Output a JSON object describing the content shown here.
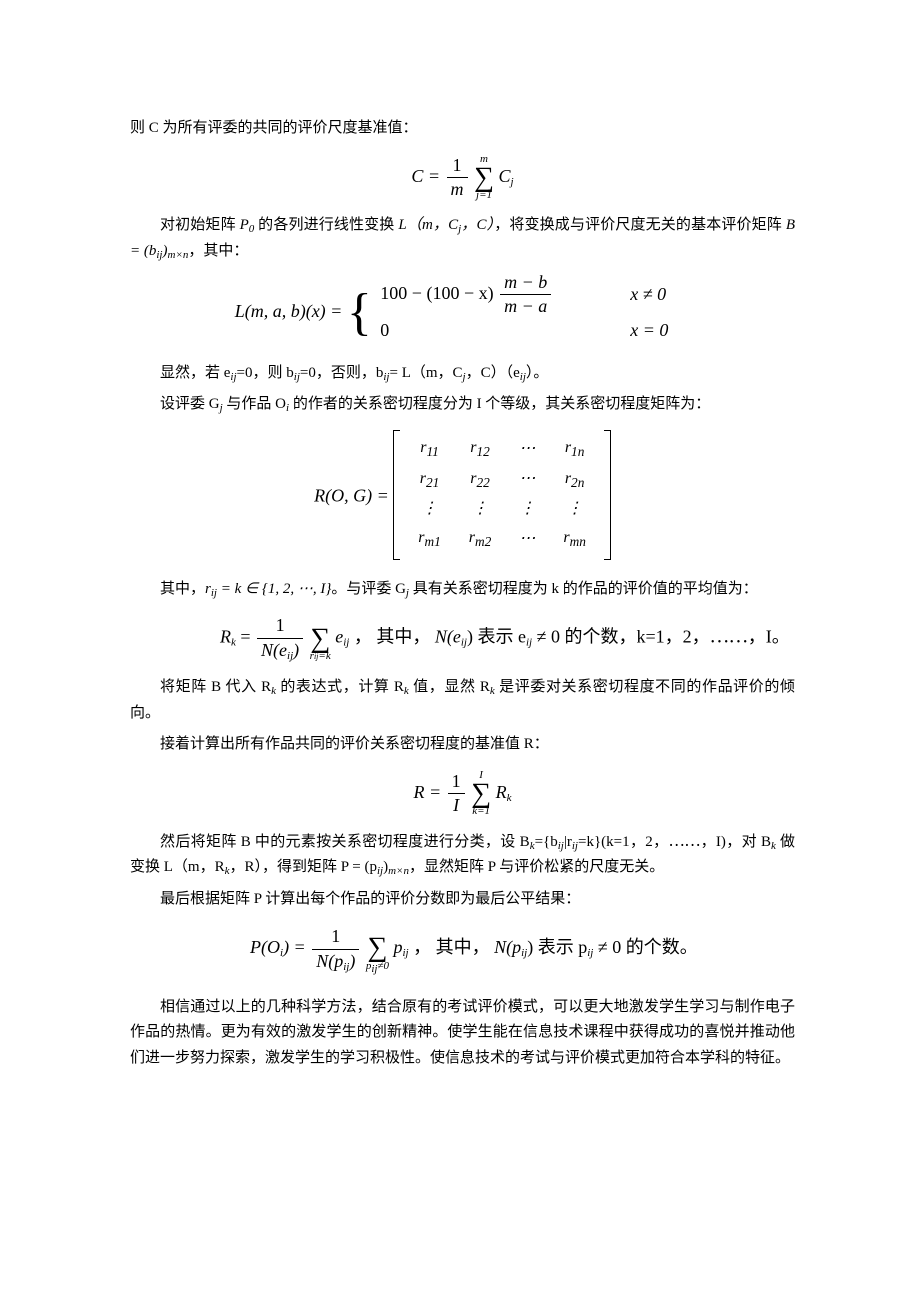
{
  "p1": "则 C 为所有评委的共同的评价尺度基准值：",
  "f1_left": "C =",
  "f1_frac_num": "1",
  "f1_frac_den": "m",
  "f1_sum_upper": "m",
  "f1_sum_lower": "j=1",
  "f1_right": "C",
  "f1_right_sub": "j",
  "p2a": "对初始矩阵 ",
  "p2b": "P",
  "p2b_sub": "0",
  "p2c": " 的各列进行线性变换 ",
  "p2d": "L（m，C",
  "p2d_sub": "j",
  "p2e": "，C）",
  "p2f": "，将变换成与评价尺度无关的基本评价矩阵 ",
  "p2g": "B = (b",
  "p2g_sub": "ij",
  "p2h": ")",
  "p2h_sub": "m×n",
  "p2i": "，其中：",
  "f2_left": "L(m, a, b)(x) = ",
  "f2_row1_expr_a": "100 − (100 − x)",
  "f2_row1_frac_num": "m − b",
  "f2_row1_frac_den": "m − a",
  "f2_row1_cond": "x ≠ 0",
  "f2_row2_expr": "0",
  "f2_row2_cond": "x = 0",
  "p3": "显然，若 e",
  "p3_sub1": "ij",
  "p3b": "=0，则 b",
  "p3_sub2": "ij",
  "p3c": "=0，否则，b",
  "p3_sub3": "ij",
  "p3d": "= L（m，C",
  "p3_sub4": "j",
  "p3e": "，C）（e",
  "p3_sub5": "ij",
  "p3f": "）。",
  "p4": "设评委 G",
  "p4_sub1": "j",
  "p4b": " 与作品 O",
  "p4_sub2": "i",
  "p4c": " 的作者的关系密切程度分为 I 个等级，其关系密切程度矩阵为：",
  "f3_left": "R(O, G) = ",
  "matrix": {
    "rows": [
      [
        "r<sub>11</sub>",
        "r<sub>12</sub>",
        "⋯",
        "r<sub>1n</sub>"
      ],
      [
        "r<sub>21</sub>",
        "r<sub>22</sub>",
        "⋯",
        "r<sub>2n</sub>"
      ],
      [
        "⋮",
        "⋮",
        "⋮",
        "⋮"
      ],
      [
        "r<sub>m1</sub>",
        "r<sub>m2</sub>",
        "⋯",
        "r<sub>mn</sub>"
      ]
    ]
  },
  "p5a": "其中，",
  "p5b": "r",
  "p5b_sub": "ij",
  "p5c": " = k ∈ {1, 2, ⋯, I}",
  "p5d": "。与评委 G",
  "p5d_sub": "j",
  "p5e": " 具有关系密切程度为 k 的作品的评价值的平均值为：",
  "f4_left_a": "R",
  "f4_left_sub": "k",
  "f4_left_b": " = ",
  "f4_frac_num": "1",
  "f4_frac_den_a": "N(e",
  "f4_frac_den_sub": "ij",
  "f4_frac_den_b": ")",
  "f4_sum_lower_a": "r",
  "f4_sum_lower_b": "=k",
  "f4_right_a": "e",
  "f4_right_sub": "ij",
  "f4_text1": "，  其中， ",
  "f4_text2": "N(e",
  "f4_text2_sub": "ij",
  "f4_text3": ")  表示  e",
  "f4_text3_sub": "ij",
  "f4_text4": " ≠ 0 的个数，k=1，2，⋯⋯，I。",
  "p6a": "将矩阵 B 代入 R",
  "p6a_sub": "k",
  "p6b": " 的表达式，计算 R",
  "p6b_sub": "k",
  "p6c": " 值，显然 R",
  "p6c_sub": "k",
  "p6d": " 是评委对关系密切程度不同的作品评价的倾向。",
  "p7": "接着计算出所有作品共同的评价关系密切程度的基准值 R：",
  "f5_left": "R = ",
  "f5_frac_num": "1",
  "f5_frac_den": "I",
  "f5_sum_upper": "I",
  "f5_sum_lower": "k=1",
  "f5_right": "R",
  "f5_right_sub": "k",
  "p8a": "然后将矩阵 B 中的元素按关系密切程度进行分类，设 B",
  "p8a_sub": "k",
  "p8b": "={b",
  "p8b_sub": "ij",
  "p8c": "|r",
  "p8c_sub": "ij",
  "p8d": "=k}(k=1，2，⋯⋯，I)，对 B",
  "p8d_sub": "k",
  "p8e": " 做变换 L（m，R",
  "p8e_sub": "k",
  "p8f": "，R），得到矩阵 P = (p",
  "p8f_sub": "ij",
  "p8g": ")",
  "p8g_sub": "m×n",
  "p8h": "，显然矩阵 P 与评价松紧的尺度无关。",
  "p9": "最后根据矩阵 P 计算出每个作品的评价分数即为最后公平结果：",
  "f6_left_a": "P(O",
  "f6_left_sub": "i",
  "f6_left_b": ") = ",
  "f6_frac_num": "1",
  "f6_frac_den_a": "N(p",
  "f6_frac_den_sub": "ij",
  "f6_frac_den_b": ")",
  "f6_sum_lower_a": "p",
  "f6_sum_lower_sub": "ij",
  "f6_sum_lower_b": "≠0",
  "f6_right_a": "p",
  "f6_right_sub": "ij",
  "f6_text1": "，  其中， ",
  "f6_text2": "N(p",
  "f6_text2_sub": "ij",
  "f6_text3": ")  表示  p",
  "f6_text3_sub": "ij",
  "f6_text4": " ≠ 0 的个数。",
  "p10": "相信通过以上的几种科学方法，结合原有的考试评价模式，可以更大地激发学生学习与制作电子作品的热情。更为有效的激发学生的创新精神。使学生能在信息技术课程中获得成功的喜悦并推动他们进一步努力探索，激发学生的学习积极性。使信息技术的考试与评价模式更加符合本学科的特征。"
}
